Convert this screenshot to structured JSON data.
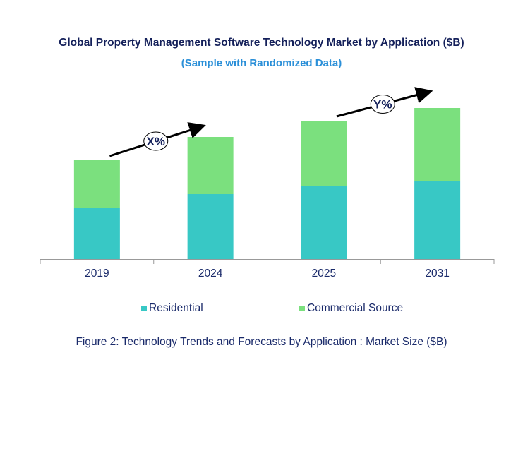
{
  "chart_data": {
    "type": "bar",
    "stacked": true,
    "title": "Global Property Management Software Technology Market by Application ($B)",
    "subtitle": "(Sample with Randomized Data)",
    "caption": "Figure 2: Technology  Trends  and Forecasts by Application : Market Size ($B)",
    "categories": [
      "2019",
      "2024",
      "2025",
      "2031"
    ],
    "series": [
      {
        "name": "Residential",
        "values": [
          73,
          92,
          103,
          110
        ],
        "color": "#38c8c5"
      },
      {
        "name": "Commercial Source",
        "values": [
          67,
          81,
          93,
          104
        ],
        "color": "#7be07e"
      }
    ],
    "ylim": [
      0,
      240
    ],
    "y_axis_visible": false,
    "grid": false,
    "legend_position": "bottom",
    "annotations": [
      {
        "label": "X%",
        "from": "2019",
        "to": "2024"
      },
      {
        "label": "Y%",
        "from": "2025",
        "to": "2031"
      }
    ],
    "colors": {
      "title": "#14205a",
      "subtitle": "#2a8fd8",
      "axis": "#999999"
    }
  }
}
